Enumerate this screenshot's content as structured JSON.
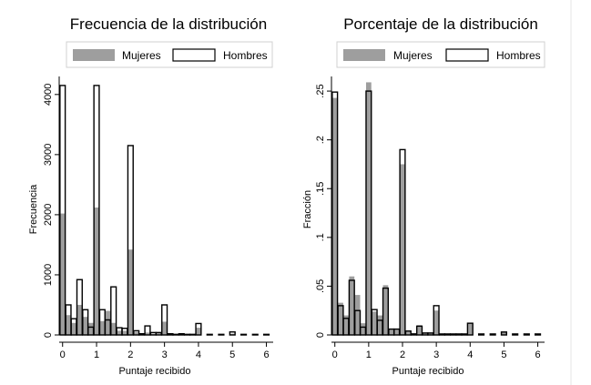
{
  "chart_data": [
    {
      "type": "bar",
      "title": "Frecuencia de la distribución",
      "xlabel": "Puntaje recibido",
      "ylabel": "Frecuencia",
      "xlim": [
        -0.1,
        6.2
      ],
      "ylim": [
        0,
        4300
      ],
      "xticks": [
        "0",
        "1",
        "2",
        "3",
        "4",
        "5",
        "6"
      ],
      "yticks": [
        "0",
        "1000",
        "2000",
        "3000",
        "4000"
      ],
      "legend_placement": "top",
      "grid": false,
      "colors": {
        "Mujeres": "#9e9e9e",
        "Hombres": "#ffffff",
        "outline": "#000000"
      },
      "series": [
        {
          "name": "Mujeres",
          "x": [
            0,
            0.17,
            0.33,
            0.5,
            0.67,
            0.83,
            1,
            1.17,
            1.33,
            1.5,
            1.67,
            1.83,
            2,
            2.17,
            2.33,
            2.5,
            2.67,
            2.83,
            3,
            3.17,
            3.33,
            3.5,
            3.67,
            3.83,
            4,
            4.33,
            4.67,
            5,
            5.33,
            5.67,
            6
          ],
          "values": [
            2020,
            330,
            200,
            500,
            300,
            200,
            2120,
            230,
            400,
            200,
            70,
            70,
            1420,
            50,
            10,
            40,
            20,
            30,
            220,
            10,
            10,
            5,
            5,
            5,
            120,
            5,
            5,
            20,
            5,
            5,
            5
          ]
        },
        {
          "name": "Hombres",
          "x": [
            0,
            0.17,
            0.33,
            0.5,
            0.67,
            0.83,
            1,
            1.17,
            1.33,
            1.5,
            1.67,
            1.83,
            2,
            2.17,
            2.33,
            2.5,
            2.67,
            2.83,
            3,
            3.17,
            3.33,
            3.5,
            3.67,
            3.83,
            4,
            4.33,
            4.67,
            5,
            5.33,
            5.67,
            6
          ],
          "values": [
            4150,
            500,
            270,
            920,
            420,
            130,
            4150,
            420,
            250,
            800,
            120,
            110,
            3150,
            70,
            20,
            150,
            40,
            40,
            500,
            20,
            10,
            20,
            10,
            10,
            190,
            10,
            10,
            50,
            10,
            10,
            10
          ]
        }
      ]
    },
    {
      "type": "bar",
      "title": "Porcentaje de la distribución",
      "xlabel": "Puntaje recibido",
      "ylabel": "Fracción",
      "xlim": [
        -0.1,
        6.2
      ],
      "ylim": [
        0,
        0.265
      ],
      "xticks": [
        "0",
        "1",
        "2",
        "3",
        "4",
        "5",
        "6"
      ],
      "yticks": [
        "0",
        ".05",
        ".1",
        ".15",
        ".2",
        ".25"
      ],
      "legend_placement": "top",
      "grid": false,
      "colors": {
        "Mujeres": "#9e9e9e",
        "Hombres": "#ffffff",
        "outline": "#000000"
      },
      "series": [
        {
          "name": "Mujeres",
          "x": [
            0,
            0.17,
            0.33,
            0.5,
            0.67,
            0.83,
            1,
            1.17,
            1.33,
            1.5,
            1.67,
            1.83,
            2,
            2.17,
            2.33,
            2.5,
            2.67,
            2.83,
            3,
            3.17,
            3.33,
            3.5,
            3.67,
            3.83,
            4,
            4.33,
            4.67,
            5,
            5.33,
            5.67,
            6
          ],
          "values": [
            0.243,
            0.033,
            0.02,
            0.06,
            0.041,
            0.012,
            0.259,
            0.024,
            0.02,
            0.051,
            0.006,
            0.006,
            0.175,
            0.004,
            0.002,
            0.01,
            0.002,
            0.002,
            0.025,
            0.001,
            0.001,
            0.001,
            0.001,
            0.001,
            0.012,
            0.001,
            0.001,
            0.003,
            0.001,
            0.001,
            0.001
          ]
        },
        {
          "name": "Hombres",
          "x": [
            0,
            0.17,
            0.33,
            0.5,
            0.67,
            0.83,
            1,
            1.17,
            1.33,
            1.5,
            1.67,
            1.83,
            2,
            2.17,
            2.33,
            2.5,
            2.67,
            2.83,
            3,
            3.17,
            3.33,
            3.5,
            3.67,
            3.83,
            4,
            4.33,
            4.67,
            5,
            5.33,
            5.67,
            6
          ],
          "values": [
            0.249,
            0.03,
            0.017,
            0.056,
            0.025,
            0.008,
            0.25,
            0.026,
            0.015,
            0.048,
            0.006,
            0.006,
            0.19,
            0.004,
            0.001,
            0.009,
            0.002,
            0.002,
            0.03,
            0.001,
            0.001,
            0.001,
            0.001,
            0.001,
            0.012,
            0.001,
            0.001,
            0.003,
            0.001,
            0.001,
            0.001
          ]
        }
      ]
    }
  ]
}
